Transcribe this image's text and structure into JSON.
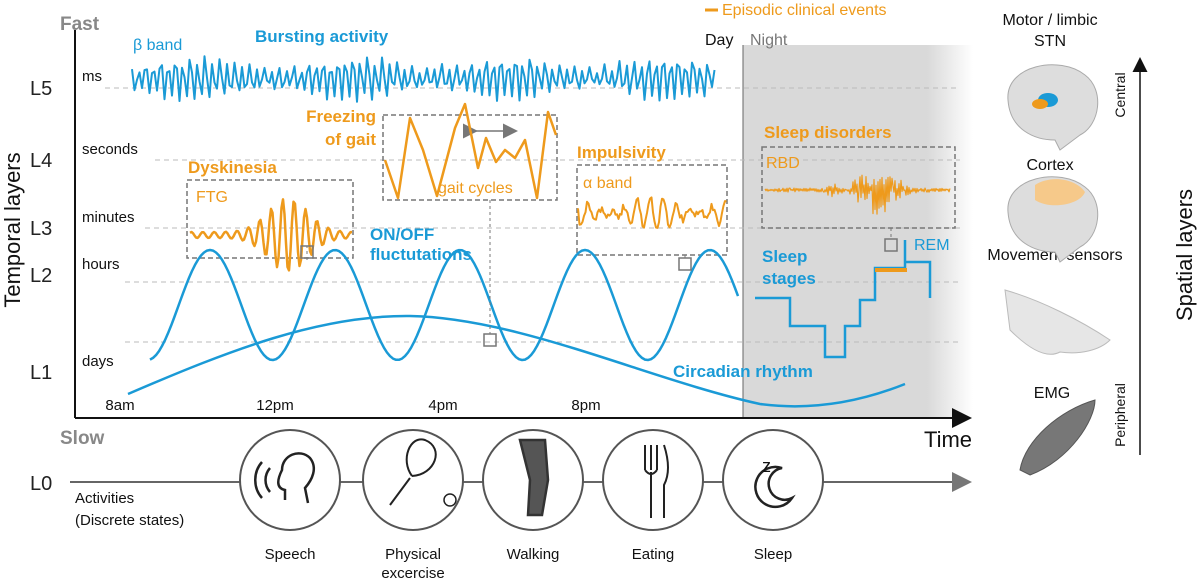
{
  "temporal_axis": {
    "title": "Temporal layers",
    "fast": "Fast",
    "slow": "Slow",
    "levels": [
      {
        "level": "L5",
        "unit": "ms"
      },
      {
        "level": "L4",
        "unit": "seconds"
      },
      {
        "level": "L3",
        "unit": "minutes"
      },
      {
        "level": "L2",
        "unit": "hours"
      },
      {
        "level": "L1",
        "unit": "days"
      }
    ],
    "l0": "L0"
  },
  "legend": {
    "episodic": "Episodic clinical events",
    "day": "Day",
    "night": "Night"
  },
  "signals": {
    "beta_band": "β band",
    "bursting": "Bursting activity",
    "dyskinesia": "Dyskinesia",
    "ftg": "FTG",
    "freezing": [
      "Freezing",
      "of gait"
    ],
    "gait_cycles": "gait cycles",
    "impulsivity": "Impulsivity",
    "alpha_band": "α band",
    "sleep_disorders": "Sleep disorders",
    "rbd": "RBD",
    "onoff": [
      "ON/OFF",
      "fluctutations"
    ],
    "sleep_stages": [
      "Sleep",
      "stages"
    ],
    "rem": "REM",
    "circadian": "Circadian rhythm"
  },
  "time_axis": {
    "title": "Time",
    "ticks": [
      "8am",
      "12pm",
      "4pm",
      "8pm"
    ]
  },
  "activities": {
    "label": "Activities",
    "sublabel": "(Discrete states)",
    "items": [
      [
        "Speech"
      ],
      [
        "Physical",
        "excercise"
      ],
      [
        "Walking"
      ],
      [
        "Eating"
      ],
      [
        "Sleep"
      ]
    ]
  },
  "spatial": {
    "title": "Spatial layers",
    "top": "Central",
    "bottom": "Peripheral",
    "items": [
      [
        "Motor / limbic",
        "STN"
      ],
      [
        "Cortex"
      ],
      [
        "Movement sensors"
      ],
      [
        "EMG"
      ]
    ]
  }
}
